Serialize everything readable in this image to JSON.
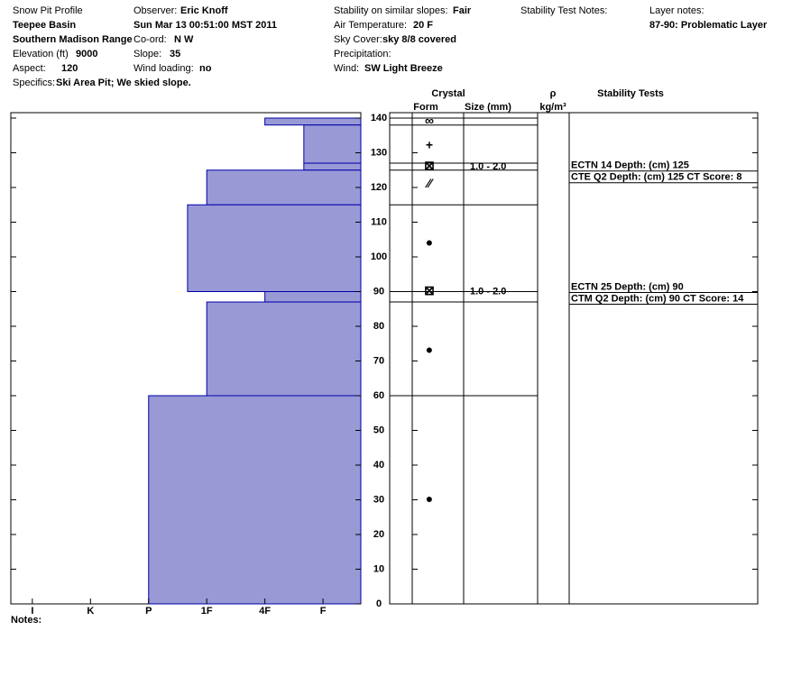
{
  "header": {
    "fields": [
      {
        "label": "Snow Pit Profile"
      },
      {
        "value": "Teepee Basin"
      },
      {
        "value": "Southern Madison Range"
      },
      {
        "label": "Elevation (ft)",
        "value": "9000"
      },
      {
        "label": "Aspect:",
        "value": "120"
      },
      {
        "label": "Specifics:",
        "value": "Ski Area Pit; We skied slope."
      },
      {
        "label": "Observer:",
        "value": "Eric Knoff"
      },
      {
        "value": "Sun Mar 13 00:51:00 MST 2011"
      },
      {
        "label": "Co-ord:",
        "value": "N  W"
      },
      {
        "label": "Slope:",
        "value": "35"
      },
      {
        "label": "Wind loading:",
        "value": "no"
      },
      {
        "label": "Stability on similar slopes:",
        "value": "Fair"
      },
      {
        "label": "Air Temperature:",
        "value": "20 F"
      },
      {
        "label": "Sky Cover:",
        "value": "sky 8/8 covered"
      },
      {
        "label": "Precipitation:"
      },
      {
        "label": "Wind:",
        "value": "SW Light Breeze"
      },
      {
        "label": "Stability Test Notes:"
      },
      {
        "label": "Layer notes:"
      },
      {
        "value": "87-90: Problematic Layer"
      }
    ],
    "columns": {
      "crystal": "Crystal",
      "form": "Form",
      "size": "Size (mm)",
      "rho": "ρ",
      "density_unit": "kg/m³",
      "tests": "Stability Tests"
    },
    "notes": "Notes:"
  },
  "chart_data": {
    "type": "hardness-profile",
    "color": "#9999d6",
    "ylim": [
      0,
      140
    ],
    "yticks": [
      0,
      10,
      20,
      30,
      40,
      50,
      60,
      70,
      80,
      90,
      100,
      110,
      120,
      130,
      140
    ],
    "xlim": [
      6.37,
      0.35
    ],
    "xticks": [
      {
        "value": 6,
        "label": "I"
      },
      {
        "value": 5,
        "label": "K"
      },
      {
        "value": 4,
        "label": "P"
      },
      {
        "value": 3,
        "label": "1F"
      },
      {
        "value": 2,
        "label": "4F"
      },
      {
        "value": 1,
        "label": "F"
      }
    ],
    "top": [
      140,
      138,
      127,
      125,
      115,
      90,
      87,
      60
    ],
    "bottom": [
      138,
      127,
      125,
      115,
      90,
      87,
      60,
      0
    ],
    "hardness": [
      2,
      1.33,
      1.33,
      3,
      3.33,
      2,
      3,
      4
    ],
    "crystals": {
      "depth": [
        139,
        132,
        126,
        121,
        104,
        90,
        73,
        30
      ],
      "form": [
        "∞",
        "+",
        "⊠",
        "⁄⁄",
        "●",
        "⊠",
        "●",
        "●"
      ],
      "size": [
        null,
        null,
        "1.0 - 2.0",
        null,
        null,
        "1.0 - 2.0",
        null,
        null
      ],
      "boundaries": [
        140,
        138,
        127,
        125,
        115,
        90,
        87,
        60
      ]
    },
    "tests": {
      "depth": [
        125,
        125,
        90,
        90
      ],
      "text": [
        "ECTN 14  Depth: (cm) 125",
        "CTE Q2 Depth: (cm) 125 CT Score: 8",
        "ECTN 25  Depth: (cm) 90",
        "CTM Q2 Depth: (cm) 90 CT Score: 14"
      ]
    }
  }
}
